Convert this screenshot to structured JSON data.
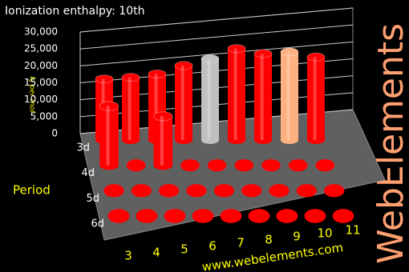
{
  "chart_data": {
    "type": "bar3d",
    "title": "Ionization enthalpy: 10th",
    "y_label": "kJ per mol",
    "row_label": "Period",
    "source": "www.webelements.com",
    "brand": "WebElements",
    "categories": [
      "3",
      "4",
      "5",
      "6",
      "7",
      "8",
      "9",
      "10",
      "11"
    ],
    "series": [
      {
        "name": "3d",
        "color": "#ff0000",
        "colors": [
          "#ff0000",
          "#ff0000",
          "#ff0000",
          "#ff0000",
          "#c0c0c0",
          "#ff0000",
          "#ff0000",
          "#ffb080",
          "#ff0000"
        ],
        "values": [
          18000,
          18500,
          19500,
          22000,
          24000,
          27000,
          25500,
          26000,
          24500
        ]
      },
      {
        "name": "4d",
        "color": "#ff0000",
        "values": [
          17500,
          null,
          14500,
          null,
          null,
          null,
          null,
          null,
          null
        ]
      },
      {
        "name": "5d",
        "color": "#ff0000",
        "values": [
          null,
          null,
          null,
          null,
          null,
          null,
          null,
          null,
          null
        ]
      },
      {
        "name": "6d",
        "color": "#ff0000",
        "values": [
          null,
          null,
          null,
          null,
          null,
          null,
          null,
          null,
          null
        ]
      }
    ],
    "ylim": [
      0,
      30000
    ],
    "yticks": [
      0,
      {
        "value": 5000,
        "label": "5,000"
      },
      {
        "value": 10000,
        "label": "10,000"
      },
      {
        "value": 15000,
        "label": "15,000"
      },
      {
        "value": 20000,
        "label": "20,000"
      },
      {
        "value": 25000,
        "label": "25,000"
      },
      {
        "value": 30000,
        "label": "30,000"
      }
    ],
    "grid": true
  }
}
